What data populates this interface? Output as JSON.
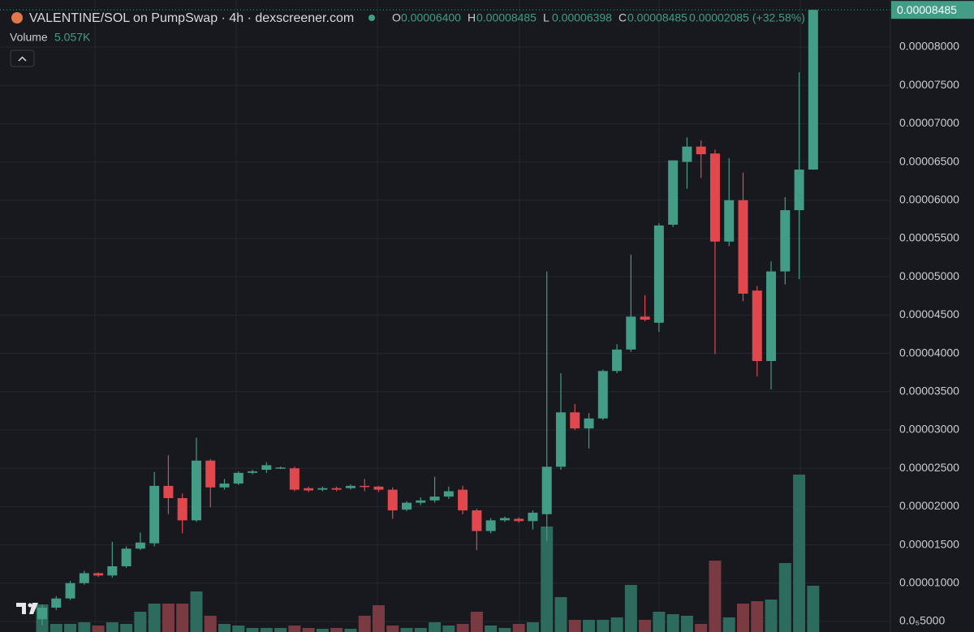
{
  "chart_data": {
    "type": "candlestick",
    "title": "VALENTINE/SOL on PumpSwap · 4h · dexscreener.com",
    "ohlc_header": [
      {
        "key": "O",
        "text": "0.00006400"
      },
      {
        "key": "H",
        "text": "0.00008485"
      },
      {
        "key": "L",
        "text": "0.00006398"
      },
      {
        "key": "C",
        "text": "0.00008485"
      }
    ],
    "change_label": "0.00002085 (+32.58%)",
    "open": [
      5.3e-06,
      6.8e-06,
      8e-06,
      1e-05,
      1.13e-05,
      1.1e-05,
      1.22e-05,
      1.45e-05,
      1.52e-05,
      2.27e-05,
      2.11e-05,
      1.82e-05,
      2.6e-05,
      2.25e-05,
      2.3e-05,
      2.44e-05,
      2.48e-05,
      2.5e-05,
      2.5e-05,
      2.24e-05,
      2.22e-05,
      2.24e-05,
      2.24e-05,
      2.27e-05,
      2.26e-05,
      2.22e-05,
      1.96e-05,
      2.05e-05,
      2.08e-05,
      2.13e-05,
      2.22e-05,
      1.95e-05,
      1.68e-05,
      1.82e-05,
      1.84e-05,
      1.81e-05,
      1.9e-05,
      2.52e-05,
      3.23e-05,
      3.02e-05,
      3.15e-05,
      3.77e-05,
      4.05e-05,
      4.48e-05,
      4.4e-05,
      5.68e-05,
      6.5e-05,
      6.7e-05,
      6.61e-05,
      5.46e-05,
      6e-05,
      4.82e-05,
      3.9e-05,
      5.07e-05,
      5.87e-05,
      6.4e-05
    ],
    "high": [
      7.2e-06,
      8.3e-06,
      1.03e-05,
      1.16e-05,
      1.14e-05,
      1.54e-05,
      1.48e-05,
      1.66e-05,
      2.45e-05,
      2.67e-05,
      2.17e-05,
      2.9e-05,
      2.62e-05,
      2.36e-05,
      2.46e-05,
      2.48e-05,
      2.58e-05,
      2.52e-05,
      2.52e-05,
      2.26e-05,
      2.26e-05,
      2.26e-05,
      2.29e-05,
      2.36e-05,
      2.27e-05,
      2.25e-05,
      2.07e-05,
      2.12e-05,
      2.39e-05,
      2.26e-05,
      2.27e-05,
      1.97e-05,
      1.85e-05,
      1.87e-05,
      1.86e-05,
      1.95e-05,
      5.07e-05,
      3.74e-05,
      3.34e-05,
      3.22e-05,
      3.79e-05,
      4.12e-05,
      5.29e-05,
      4.76e-05,
      5.7e-05,
      6.52e-05,
      6.82e-05,
      6.78e-05,
      6.66e-05,
      6.55e-05,
      6.36e-05,
      4.88e-05,
      5.2e-05,
      6.04e-05,
      7.67e-05,
      8.485e-05
    ],
    "low": [
      4.5e-06,
      6.5e-06,
      7.8e-06,
      9.8e-06,
      1.08e-05,
      1.07e-05,
      1.2e-05,
      1.43e-05,
      1.48e-05,
      1.9e-05,
      1.65e-05,
      1.8e-05,
      1.99e-05,
      2.22e-05,
      2.28e-05,
      2.42e-05,
      2.44e-05,
      2.49e-05,
      2.2e-05,
      2.19e-05,
      2.2e-05,
      2.2e-05,
      2.22e-05,
      2.2e-05,
      2.19e-05,
      1.84e-05,
      1.94e-05,
      2.02e-05,
      2.05e-05,
      2.1e-05,
      1.9e-05,
      1.43e-05,
      1.65e-05,
      1.8e-05,
      1.79e-05,
      1.7e-05,
      1.55e-05,
      2.48e-05,
      3e-05,
      2.76e-05,
      3.13e-05,
      3.74e-05,
      4.02e-05,
      4.42e-05,
      4.28e-05,
      5.65e-05,
      6.15e-05,
      6.29e-05,
      3.99e-05,
      5.4e-05,
      4.68e-05,
      3.7e-05,
      3.53e-05,
      4.9e-05,
      4.97e-05,
      6.398e-05
    ],
    "close": [
      6.8e-06,
      8e-06,
      1e-05,
      1.13e-05,
      1.1e-05,
      1.22e-05,
      1.45e-05,
      1.53e-05,
      2.27e-05,
      2.11e-05,
      1.82e-05,
      2.6e-05,
      2.25e-05,
      2.3e-05,
      2.44e-05,
      2.46e-05,
      2.54e-05,
      2.51e-05,
      2.22e-05,
      2.21e-05,
      2.24e-05,
      2.22e-05,
      2.27e-05,
      2.26e-05,
      2.22e-05,
      1.95e-05,
      2.05e-05,
      2.08e-05,
      2.13e-05,
      2.2e-05,
      1.95e-05,
      1.68e-05,
      1.82e-05,
      1.85e-05,
      1.81e-05,
      1.92e-05,
      2.52e-05,
      3.23e-05,
      3.02e-05,
      3.15e-05,
      3.77e-05,
      4.05e-05,
      4.48e-05,
      4.44e-05,
      5.67e-05,
      6.52e-05,
      6.7e-05,
      6.6e-05,
      5.46e-05,
      6e-05,
      4.78e-05,
      3.9e-05,
      5.07e-05,
      5.87e-05,
      6.4e-05,
      8.485e-05
    ],
    "up_color": "#429c86",
    "down_color": "#e0484e",
    "volume": {
      "name": "Volume",
      "value_label": "5.057K",
      "values": [
        3016,
        887,
        887,
        1064,
        710,
        1064,
        887,
        2218,
        3105,
        3105,
        3105,
        4435,
        1774,
        887,
        710,
        444,
        444,
        444,
        710,
        444,
        355,
        444,
        355,
        1774,
        2927,
        710,
        444,
        444,
        1064,
        710,
        887,
        2218,
        710,
        444,
        887,
        1064,
        11531,
        3814,
        1331,
        1331,
        1331,
        1597,
        5145,
        1331,
        2218,
        1951,
        1774,
        887,
        7806,
        1597,
        3105,
        3371,
        3548,
        7540,
        17208,
        5057
      ],
      "up_color": "#2d6b5e",
      "down_color": "#7a3a41"
    },
    "last_price": {
      "value": 8.485e-05,
      "label": "0.00008485"
    },
    "ylim": [
      3.62e-06,
      8.614e-05
    ],
    "yticks": [
      {
        "value": 8e-05,
        "label": "0.00008000"
      },
      {
        "value": 7.5e-05,
        "label": "0.00007500"
      },
      {
        "value": 7e-05,
        "label": "0.00007000"
      },
      {
        "value": 6.5e-05,
        "label": "0.00006500"
      },
      {
        "value": 6e-05,
        "label": "0.00006000"
      },
      {
        "value": 5.5e-05,
        "label": "0.00005500"
      },
      {
        "value": 5e-05,
        "label": "0.00005000"
      },
      {
        "value": 4.5e-05,
        "label": "0.00004500"
      },
      {
        "value": 4e-05,
        "label": "0.00004000"
      },
      {
        "value": 3.5e-05,
        "label": "0.00003500"
      },
      {
        "value": 3e-05,
        "label": "0.00003000"
      },
      {
        "value": 2.5e-05,
        "label": "0.00002500"
      },
      {
        "value": 2e-05,
        "label": "0.00002000"
      },
      {
        "value": 1.5e-05,
        "label": "0.00001500"
      },
      {
        "value": 1e-05,
        "label": "0.00001000"
      },
      {
        "value": 5e-06,
        "label": "0.0₅5000"
      }
    ],
    "grid": true
  }
}
